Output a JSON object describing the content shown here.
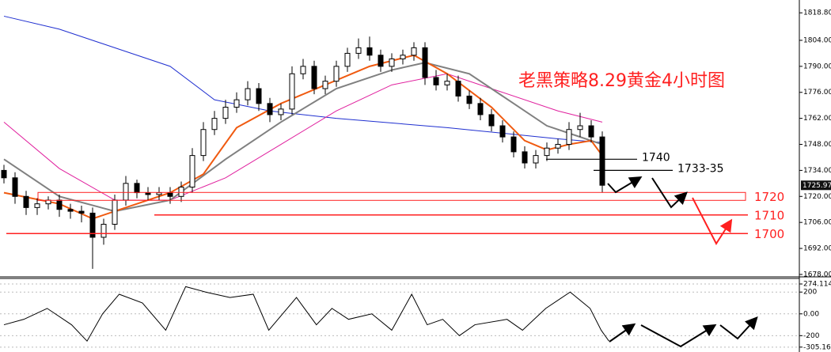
{
  "chart_data": [
    {
      "type": "candlestick",
      "title": "老黑策略8.29黄金4小时图",
      "open": [
        1734,
        1730,
        1720,
        1714,
        1716,
        1718,
        1713,
        1712,
        1711,
        1698,
        1705,
        1718,
        1727,
        1722,
        1721,
        1722,
        1720,
        1725,
        1742,
        1756,
        1762,
        1768,
        1772,
        1778,
        1770,
        1764,
        1767,
        1786,
        1790,
        1778,
        1782,
        1790,
        1797,
        1800,
        1796,
        1790,
        1794,
        1796,
        1800,
        1784,
        1780,
        1782,
        1774,
        1770,
        1764,
        1758,
        1752,
        1744,
        1738,
        1742,
        1746,
        1748,
        1756,
        1758,
        1752
      ],
      "high": [
        1737,
        1733,
        1723,
        1719,
        1720,
        1721,
        1716,
        1715,
        1714,
        1708,
        1721,
        1731,
        1729,
        1725,
        1725,
        1725,
        1728,
        1746,
        1760,
        1766,
        1772,
        1776,
        1782,
        1781,
        1773,
        1770,
        1790,
        1794,
        1793,
        1785,
        1793,
        1800,
        1805,
        1806,
        1799,
        1797,
        1799,
        1803,
        1803,
        1788,
        1786,
        1785,
        1777,
        1773,
        1767,
        1761,
        1755,
        1747,
        1745,
        1749,
        1751,
        1760,
        1765,
        1761,
        1755
      ],
      "low": [
        1727,
        1716,
        1710,
        1710,
        1713,
        1709,
        1708,
        1706,
        1681,
        1694,
        1702,
        1715,
        1719,
        1718,
        1718,
        1716,
        1717,
        1722,
        1739,
        1753,
        1759,
        1765,
        1769,
        1766,
        1760,
        1761,
        1764,
        1783,
        1775,
        1775,
        1779,
        1787,
        1794,
        1793,
        1787,
        1787,
        1791,
        1793,
        1780,
        1777,
        1777,
        1771,
        1767,
        1761,
        1755,
        1749,
        1741,
        1735,
        1735,
        1739,
        1743,
        1745,
        1752,
        1749,
        1722
      ],
      "close": [
        1730,
        1720,
        1714,
        1716,
        1718,
        1713,
        1712,
        1711,
        1698,
        1705,
        1718,
        1727,
        1722,
        1721,
        1722,
        1720,
        1725,
        1742,
        1756,
        1762,
        1768,
        1772,
        1778,
        1770,
        1764,
        1767,
        1786,
        1790,
        1778,
        1782,
        1790,
        1797,
        1800,
        1796,
        1790,
        1794,
        1796,
        1800,
        1784,
        1780,
        1782,
        1774,
        1770,
        1764,
        1758,
        1752,
        1744,
        1738,
        1742,
        1746,
        1748,
        1756,
        1758,
        1752,
        1726
      ],
      "series": [
        {
          "color": "#1f2fd0",
          "x": [
            0,
            5,
            10,
            15,
            19,
            24,
            30,
            40,
            50,
            54
          ],
          "values": [
            1817,
            1810,
            1800,
            1790,
            1772,
            1766,
            1762,
            1757,
            1751,
            1749
          ]
        },
        {
          "color": "#e0209e",
          "x": [
            0,
            5,
            10,
            15,
            20,
            25,
            30,
            35,
            40,
            45,
            50,
            54
          ],
          "values": [
            1760,
            1735,
            1718,
            1718,
            1730,
            1748,
            1766,
            1780,
            1786,
            1776,
            1766,
            1760
          ]
        },
        {
          "color": "#808080",
          "x": [
            0,
            5,
            10,
            15,
            20,
            25,
            30,
            35,
            38,
            42,
            46,
            49,
            52,
            54
          ],
          "values": [
            1740,
            1720,
            1712,
            1718,
            1740,
            1760,
            1778,
            1788,
            1792,
            1786,
            1770,
            1758,
            1752,
            1748
          ]
        },
        {
          "color": "#f05a10",
          "x": [
            0,
            5,
            8,
            10,
            15,
            18,
            21,
            25,
            29,
            33,
            37,
            40,
            44,
            47,
            49,
            51,
            53,
            54
          ],
          "values": [
            1722,
            1716,
            1708,
            1712,
            1722,
            1732,
            1757,
            1770,
            1780,
            1790,
            1796,
            1786,
            1768,
            1750,
            1745,
            1748,
            1750,
            1742
          ]
        }
      ],
      "levels": [
        {
          "value": 1740,
          "label": "1740",
          "color": "#000000"
        },
        {
          "value": 1734,
          "label": "1733-35",
          "color": "#000000"
        },
        {
          "value": 1720,
          "label": "1720",
          "color": "#ff2020"
        },
        {
          "value": 1710,
          "label": "1710",
          "color": "#ff2020"
        },
        {
          "value": 1700,
          "label": "1700",
          "color": "#ff2020"
        }
      ],
      "last_price": 1725.97,
      "ylim": [
        1676.7,
        1825.7
      ],
      "yticks": [
        {
          "value": 1678,
          "label": "1678.00"
        },
        {
          "value": 1692,
          "label": "1692.00"
        },
        {
          "value": 1706,
          "label": "1706.00"
        },
        {
          "value": 1720,
          "label": "1720.00"
        },
        {
          "value": 1734,
          "label": "1734.00"
        },
        {
          "value": 1748,
          "label": "1748.00"
        },
        {
          "value": 1762,
          "label": "1762.00"
        },
        {
          "value": 1776,
          "label": "1776.00"
        },
        {
          "value": 1790,
          "label": "1790.00"
        },
        {
          "value": 1804,
          "label": "1804.00"
        },
        {
          "value": 1818.8,
          "label": "1818.80"
        }
      ]
    },
    {
      "type": "line",
      "series": [
        {
          "color": "#000000",
          "x": [
            0,
            1.8,
            3.9,
            6.1,
            7.5,
            8.9,
            10.4,
            12.5,
            14.6,
            16.4,
            18.2,
            20.4,
            22.5,
            23.9,
            26.4,
            28.2,
            29.6,
            31.1,
            33.2,
            35,
            36.8,
            38.2,
            39.6,
            41.1,
            42.5,
            45.4,
            46.8,
            48.9,
            51.1,
            52.9,
            53.9,
            54.6
          ],
          "values": [
            -100,
            -50,
            50,
            -100,
            -250,
            0,
            180,
            100,
            -150,
            250,
            200,
            150,
            180,
            -150,
            150,
            -100,
            50,
            -50,
            0,
            -150,
            180,
            -100,
            -50,
            -200,
            -100,
            -50,
            -150,
            50,
            200,
            50,
            -150,
            -250
          ]
        }
      ],
      "ylim": [
        -350,
        325
      ],
      "yticks": [
        274.1148,
        200,
        {
          "value": 0,
          "label": "0.00"
        },
        -200,
        -305.168
      ]
    }
  ]
}
